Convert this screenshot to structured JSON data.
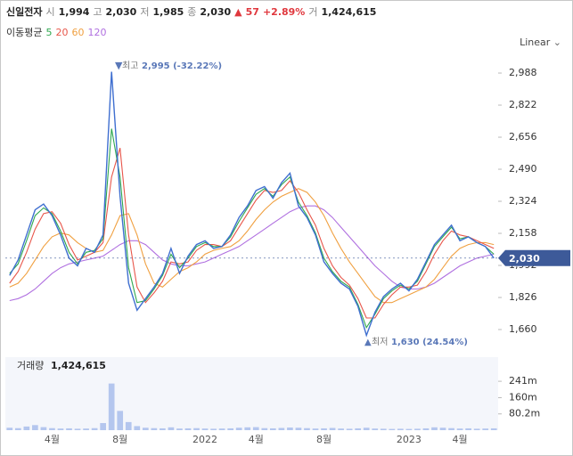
{
  "chart_data": {
    "type": "line",
    "quote": {
      "name": "신일전자",
      "open_label": "시",
      "open": "1,994",
      "high_label": "고",
      "high": "2,030",
      "low_label": "저",
      "low": "1,985",
      "close_label": "종",
      "close": "2,030",
      "change": "57",
      "change_pct": "+2.89%",
      "volume_label": "거",
      "volume": "1,424,615"
    },
    "legend_title": "이동평균",
    "scale": "Linear",
    "annotations": [
      {
        "label": "최고",
        "text": "2,995 (-32.22%)"
      },
      {
        "label": "최저",
        "text": "1,630 (24.54%)"
      }
    ],
    "categories": [
      null,
      null,
      null,
      null,
      null,
      "4월",
      null,
      null,
      null,
      null,
      null,
      null,
      null,
      "8월",
      null,
      null,
      null,
      null,
      null,
      null,
      null,
      null,
      null,
      "2022",
      null,
      null,
      null,
      null,
      null,
      "4월",
      null,
      null,
      null,
      null,
      null,
      null,
      null,
      "8월",
      null,
      null,
      null,
      null,
      null,
      null,
      null,
      null,
      null,
      "2023",
      null,
      null,
      null,
      null,
      null,
      "4월",
      null,
      null,
      null,
      null
    ],
    "ylim": [
      1554,
      3085
    ],
    "yticks": [
      {
        "value": 1660,
        "label": "1,660"
      },
      {
        "value": 1826,
        "label": "1,826"
      },
      {
        "value": 1992,
        "label": "1,992"
      },
      {
        "value": 2158,
        "label": "2,158"
      },
      {
        "value": 2324,
        "label": "2,324"
      },
      {
        "value": 2490,
        "label": "2,490"
      },
      {
        "value": 2656,
        "label": "2,656"
      },
      {
        "value": 2822,
        "label": "2,822"
      },
      {
        "value": 2988,
        "label": "2,988"
      }
    ],
    "series": [
      {
        "color": "#3f6fd0",
        "values": [
          1940,
          2020,
          2150,
          2280,
          2310,
          2250,
          2150,
          2030,
          1990,
          2080,
          2060,
          2150,
          2995,
          2350,
          1900,
          1760,
          1820,
          1880,
          1950,
          2080,
          1950,
          2040,
          2100,
          2120,
          2080,
          2090,
          2150,
          2240,
          2300,
          2380,
          2400,
          2340,
          2420,
          2470,
          2300,
          2240,
          2150,
          2010,
          1950,
          1900,
          1870,
          1780,
          1630,
          1750,
          1830,
          1870,
          1900,
          1860,
          1920,
          2010,
          2100,
          2150,
          2200,
          2120,
          2140,
          2110,
          2090,
          2030
        ]
      },
      {
        "name": "5",
        "color": "#2fa84f",
        "values": [
          1950,
          2000,
          2120,
          2250,
          2290,
          2260,
          2170,
          2060,
          2000,
          2060,
          2070,
          2130,
          2700,
          2450,
          1980,
          1800,
          1810,
          1870,
          1940,
          2050,
          1980,
          2030,
          2090,
          2110,
          2090,
          2090,
          2140,
          2220,
          2290,
          2360,
          2390,
          2350,
          2410,
          2450,
          2320,
          2250,
          2160,
          2030,
          1960,
          1910,
          1880,
          1790,
          1670,
          1740,
          1820,
          1860,
          1890,
          1870,
          1910,
          2000,
          2090,
          2140,
          2190,
          2130,
          2140,
          2110,
          2090,
          2050
        ]
      },
      {
        "name": "20",
        "color": "#e8564a",
        "values": [
          1900,
          1960,
          2060,
          2180,
          2260,
          2270,
          2210,
          2100,
          2020,
          2040,
          2060,
          2110,
          2450,
          2600,
          2150,
          1880,
          1800,
          1850,
          1910,
          2010,
          2000,
          2010,
          2070,
          2100,
          2100,
          2090,
          2120,
          2190,
          2260,
          2330,
          2380,
          2370,
          2380,
          2430,
          2370,
          2280,
          2200,
          2080,
          1990,
          1930,
          1890,
          1820,
          1720,
          1720,
          1790,
          1840,
          1880,
          1880,
          1890,
          1960,
          2050,
          2120,
          2170,
          2150,
          2140,
          2120,
          2100,
          2080
        ]
      },
      {
        "name": "60",
        "color": "#f0a040",
        "values": [
          1880,
          1900,
          1950,
          2020,
          2090,
          2140,
          2160,
          2150,
          2110,
          2080,
          2060,
          2070,
          2150,
          2250,
          2260,
          2150,
          2000,
          1900,
          1880,
          1920,
          1960,
          1980,
          2010,
          2050,
          2070,
          2080,
          2090,
          2120,
          2170,
          2230,
          2280,
          2320,
          2350,
          2370,
          2390,
          2370,
          2320,
          2250,
          2160,
          2080,
          2010,
          1950,
          1890,
          1830,
          1800,
          1800,
          1820,
          1840,
          1860,
          1880,
          1920,
          1980,
          2040,
          2080,
          2100,
          2110,
          2110,
          2100
        ]
      },
      {
        "name": "120",
        "color": "#b070e0",
        "values": [
          1810,
          1820,
          1840,
          1870,
          1910,
          1950,
          1980,
          2000,
          2010,
          2020,
          2030,
          2040,
          2070,
          2100,
          2120,
          2120,
          2100,
          2060,
          2020,
          2000,
          1990,
          1990,
          2000,
          2010,
          2030,
          2050,
          2070,
          2090,
          2120,
          2150,
          2180,
          2210,
          2240,
          2270,
          2290,
          2300,
          2300,
          2280,
          2240,
          2190,
          2140,
          2090,
          2040,
          1990,
          1950,
          1910,
          1880,
          1870,
          1870,
          1880,
          1900,
          1930,
          1960,
          1990,
          2010,
          2030,
          2040,
          2050
        ]
      }
    ],
    "volume": {
      "title": "거래량",
      "color": "#b4c6ee",
      "values": [
        12,
        10,
        18,
        25,
        15,
        10,
        8,
        9,
        7,
        8,
        10,
        35,
        230,
        95,
        40,
        20,
        12,
        10,
        9,
        14,
        8,
        9,
        10,
        8,
        7,
        8,
        9,
        12,
        14,
        15,
        10,
        9,
        11,
        13,
        12,
        10,
        8,
        9,
        11,
        8,
        7,
        9,
        12,
        8,
        7,
        6,
        7,
        6,
        7,
        9,
        14,
        12,
        10,
        8,
        9,
        7,
        8,
        9
      ],
      "ylim": [
        0,
        360
      ],
      "yticks": [
        {
          "value": 80.2,
          "label": "80.2m"
        },
        {
          "value": 160,
          "label": "160m"
        },
        {
          "value": 241,
          "label": "241m"
        }
      ]
    }
  }
}
